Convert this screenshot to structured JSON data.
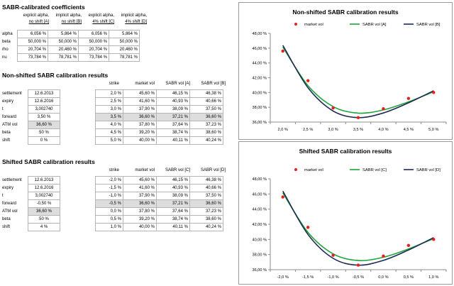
{
  "coef": {
    "title": "SABR-calibrated coefficients",
    "headers": [
      [
        "explicit alpha,",
        "no shift [A]"
      ],
      [
        "implicit alpha,",
        "no shift [B]"
      ],
      [
        "explicit alpha,",
        "4% shift [C]"
      ],
      [
        "implicit alpha,",
        "4% shift [D]"
      ]
    ],
    "rows": [
      {
        "label": "alpha",
        "values": [
          "6,056 %",
          "5,864 %",
          "6,056 %",
          "5,864 %"
        ]
      },
      {
        "label": "beta",
        "values": [
          "50,000 %",
          "50,000 %",
          "50,000 %",
          "50,000 %"
        ]
      },
      {
        "label": "rho",
        "values": [
          "20,704 %",
          "20,460 %",
          "20,704 %",
          "20,460 %"
        ]
      },
      {
        "label": "nu",
        "values": [
          "73,784 %",
          "78,781 %",
          "73,784 %",
          "78,781 %"
        ]
      }
    ]
  },
  "nonshifted": {
    "title": "Non-shifted SABR calibration results",
    "params": [
      {
        "label": "settlement",
        "value": "12.6.2013"
      },
      {
        "label": "expiry",
        "value": "12.6.2016"
      },
      {
        "label": "t",
        "value": "3,002740"
      },
      {
        "label": "forward",
        "value": "3,50 %"
      },
      {
        "label": "ATM vol",
        "value": "36,60 %"
      },
      {
        "label": "beta",
        "value": "50 %"
      },
      {
        "label": "shift",
        "value": "0 %"
      }
    ],
    "cols": [
      "strike",
      "market vol",
      "SABR vol [A]",
      "SABR vol [B]"
    ],
    "rows": [
      [
        "2,0 %",
        "45,60 %",
        "46,15 %",
        "46,38 %"
      ],
      [
        "2,5 %",
        "41,60 %",
        "40,93 %",
        "40,66 %"
      ],
      [
        "3,0 %",
        "37,90 %",
        "38,09 %",
        "37,50 %"
      ],
      [
        "3,5 %",
        "36,60 %",
        "37,21 %",
        "36,60 %"
      ],
      [
        "4,0 %",
        "37,80 %",
        "37,64 %",
        "37,23 %"
      ],
      [
        "4,5 %",
        "39,20 %",
        "38,74 %",
        "38,60 %"
      ],
      [
        "5,0 %",
        "40,00 %",
        "40,11 %",
        "40,24 %"
      ]
    ]
  },
  "shifted": {
    "title": "Shifted SABR calibration results",
    "params": [
      {
        "label": "settlement",
        "value": "12.6.2013"
      },
      {
        "label": "expiry",
        "value": "12.6.2016"
      },
      {
        "label": "t",
        "value": "3,002740"
      },
      {
        "label": "forward",
        "value": "-0,50 %"
      },
      {
        "label": "ATM vol",
        "value": "36,60 %"
      },
      {
        "label": "beta",
        "value": "50 %"
      },
      {
        "label": "shift",
        "value": "4 %"
      }
    ],
    "cols": [
      "strike",
      "market vol",
      "SABR vol [C]",
      "SABR vol [D]"
    ],
    "rows": [
      [
        "-2,0 %",
        "45,60 %",
        "46,15 %",
        "46,38 %"
      ],
      [
        "-1,5 %",
        "41,60 %",
        "40,93 %",
        "40,66 %"
      ],
      [
        "-1,0 %",
        "37,90 %",
        "38,09 %",
        "37,50 %"
      ],
      [
        "-0,5 %",
        "36,60 %",
        "37,21 %",
        "36,60 %"
      ],
      [
        "0,0 %",
        "37,80 %",
        "37,64 %",
        "37,23 %"
      ],
      [
        "0,5 %",
        "39,20 %",
        "38,74 %",
        "38,60 %"
      ],
      [
        "1,0 %",
        "40,00 %",
        "40,11 %",
        "40,24 %"
      ]
    ]
  },
  "colors": {
    "market": "#e8201c",
    "green": "#1fa53a",
    "navy": "#1c2a55"
  },
  "chart_data": [
    {
      "type": "line",
      "title": "Non-shifted SABR calibration results",
      "x": [
        2.0,
        2.5,
        3.0,
        3.5,
        4.0,
        4.5,
        5.0
      ],
      "x_tick_labels": [
        "2,0 %",
        "2,5 %",
        "3,0 %",
        "3,5 %",
        "4,0 %",
        "4,5 %",
        "5,0 %"
      ],
      "y_tick_labels": [
        "36,00 %",
        "38,00 %",
        "40,00 %",
        "42,00 %",
        "44,00 %",
        "46,00 %",
        "48,00 %"
      ],
      "ylim": [
        36,
        48
      ],
      "legend_position": "top",
      "grid": false,
      "series": [
        {
          "name": "market vol",
          "style": "markers",
          "values": [
            45.6,
            41.6,
            37.9,
            36.6,
            37.8,
            39.2,
            40.0
          ]
        },
        {
          "name": "SABR vol [A]",
          "style": "line",
          "values": [
            46.15,
            40.93,
            38.09,
            37.21,
            37.64,
            38.74,
            40.11
          ]
        },
        {
          "name": "SABR vol [B]",
          "style": "line",
          "values": [
            46.38,
            40.66,
            37.5,
            36.6,
            37.23,
            38.6,
            40.24
          ]
        }
      ]
    },
    {
      "type": "line",
      "title": "Shifted SABR calibration results",
      "x": [
        -2.0,
        -1.5,
        -1.0,
        -0.5,
        0.0,
        0.5,
        1.0
      ],
      "x_tick_labels": [
        "-2,0 %",
        "-1,5 %",
        "-1,0 %",
        "-0,5 %",
        "0,0 %",
        "0,5 %",
        "1,0 %"
      ],
      "y_tick_labels": [
        "36,00 %",
        "38,00 %",
        "40,00 %",
        "42,00 %",
        "44,00 %",
        "46,00 %",
        "48,00 %"
      ],
      "ylim": [
        36,
        48
      ],
      "legend_position": "top",
      "grid": false,
      "series": [
        {
          "name": "market vol",
          "style": "markers",
          "values": [
            45.6,
            41.6,
            37.9,
            36.6,
            37.8,
            39.2,
            40.0
          ]
        },
        {
          "name": "SABR vol [C]",
          "style": "line",
          "values": [
            46.15,
            40.93,
            38.09,
            37.21,
            37.64,
            38.74,
            40.11
          ]
        },
        {
          "name": "SABR vol [D]",
          "style": "line",
          "values": [
            46.38,
            40.66,
            37.5,
            36.6,
            37.23,
            38.6,
            40.24
          ]
        }
      ]
    }
  ]
}
